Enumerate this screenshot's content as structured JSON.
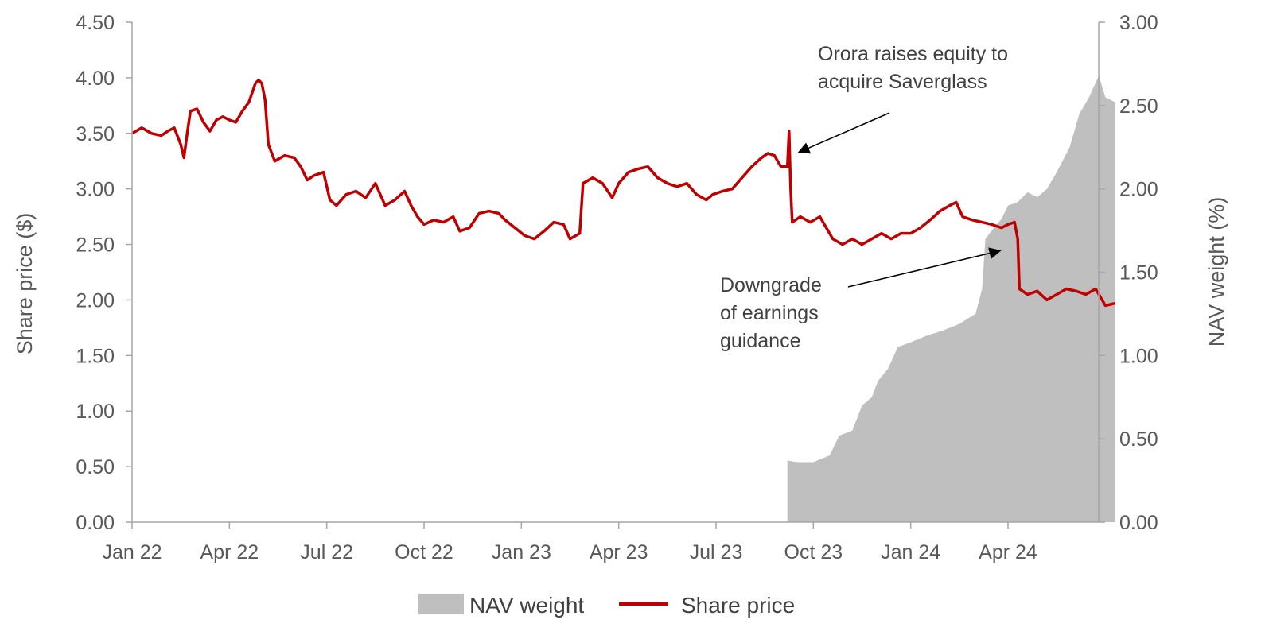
{
  "chart_data": {
    "type": "line+area",
    "title": "",
    "x_ticks": [
      "Jan 22",
      "Apr 22",
      "Jul 22",
      "Oct 22",
      "Jan 23",
      "Apr 23",
      "Jul 23",
      "Oct 23",
      "Jan 24",
      "Apr 24"
    ],
    "x_range_months": [
      0,
      30
    ],
    "left_axis": {
      "label": "Share price ($)",
      "min": 0,
      "max": 4.5,
      "ticks": [
        "0.00",
        "0.50",
        "1.00",
        "1.50",
        "2.00",
        "2.50",
        "3.00",
        "3.50",
        "4.00",
        "4.50"
      ]
    },
    "right_axis": {
      "label": "NAV weight (%)",
      "min": 0,
      "max": 3.0,
      "ticks": [
        "0.00",
        "0.50",
        "1.00",
        "1.50",
        "2.00",
        "2.50",
        "3.00"
      ]
    },
    "series": [
      {
        "name": "NAV weight",
        "kind": "area",
        "axis": "right",
        "color": "#bfbfbf",
        "points": [
          [
            20.2,
            0
          ],
          [
            20.2,
            0.37
          ],
          [
            20.5,
            0.36
          ],
          [
            21.0,
            0.36
          ],
          [
            21.5,
            0.4
          ],
          [
            21.8,
            0.52
          ],
          [
            22.2,
            0.55
          ],
          [
            22.5,
            0.7
          ],
          [
            22.8,
            0.75
          ],
          [
            23.0,
            0.85
          ],
          [
            23.3,
            0.92
          ],
          [
            23.6,
            1.05
          ],
          [
            24.0,
            1.08
          ],
          [
            24.5,
            1.12
          ],
          [
            25.0,
            1.15
          ],
          [
            25.5,
            1.19
          ],
          [
            26.0,
            1.25
          ],
          [
            26.2,
            1.4
          ],
          [
            26.3,
            1.7
          ],
          [
            26.5,
            1.75
          ],
          [
            26.8,
            1.82
          ],
          [
            27.0,
            1.9
          ],
          [
            27.3,
            1.92
          ],
          [
            27.6,
            1.98
          ],
          [
            27.9,
            1.95
          ],
          [
            28.2,
            2.0
          ],
          [
            28.5,
            2.1
          ],
          [
            28.9,
            2.25
          ],
          [
            29.2,
            2.45
          ],
          [
            29.5,
            2.55
          ],
          [
            29.8,
            2.68
          ],
          [
            30.0,
            2.55
          ],
          [
            30.3,
            2.52
          ],
          [
            30.3,
            0
          ]
        ]
      },
      {
        "name": "Share price",
        "kind": "line",
        "axis": "left",
        "color": "#c00000",
        "points": [
          [
            0.0,
            3.5
          ],
          [
            0.3,
            3.55
          ],
          [
            0.6,
            3.5
          ],
          [
            0.9,
            3.48
          ],
          [
            1.1,
            3.52
          ],
          [
            1.3,
            3.55
          ],
          [
            1.5,
            3.4
          ],
          [
            1.6,
            3.28
          ],
          [
            1.7,
            3.5
          ],
          [
            1.8,
            3.7
          ],
          [
            2.0,
            3.72
          ],
          [
            2.2,
            3.6
          ],
          [
            2.4,
            3.52
          ],
          [
            2.6,
            3.62
          ],
          [
            2.8,
            3.65
          ],
          [
            3.0,
            3.62
          ],
          [
            3.2,
            3.6
          ],
          [
            3.4,
            3.7
          ],
          [
            3.6,
            3.78
          ],
          [
            3.8,
            3.95
          ],
          [
            3.9,
            3.98
          ],
          [
            4.0,
            3.95
          ],
          [
            4.1,
            3.8
          ],
          [
            4.2,
            3.4
          ],
          [
            4.4,
            3.25
          ],
          [
            4.7,
            3.3
          ],
          [
            5.0,
            3.28
          ],
          [
            5.2,
            3.2
          ],
          [
            5.4,
            3.08
          ],
          [
            5.6,
            3.12
          ],
          [
            5.9,
            3.15
          ],
          [
            6.1,
            2.9
          ],
          [
            6.3,
            2.85
          ],
          [
            6.6,
            2.95
          ],
          [
            6.9,
            2.98
          ],
          [
            7.2,
            2.92
          ],
          [
            7.5,
            3.05
          ],
          [
            7.8,
            2.85
          ],
          [
            8.1,
            2.9
          ],
          [
            8.4,
            2.98
          ],
          [
            8.6,
            2.85
          ],
          [
            8.8,
            2.75
          ],
          [
            9.0,
            2.68
          ],
          [
            9.3,
            2.72
          ],
          [
            9.6,
            2.7
          ],
          [
            9.9,
            2.75
          ],
          [
            10.1,
            2.62
          ],
          [
            10.4,
            2.65
          ],
          [
            10.7,
            2.78
          ],
          [
            11.0,
            2.8
          ],
          [
            11.3,
            2.78
          ],
          [
            11.5,
            2.72
          ],
          [
            11.8,
            2.65
          ],
          [
            12.1,
            2.58
          ],
          [
            12.4,
            2.55
          ],
          [
            12.7,
            2.62
          ],
          [
            13.0,
            2.7
          ],
          [
            13.3,
            2.68
          ],
          [
            13.5,
            2.55
          ],
          [
            13.8,
            2.6
          ],
          [
            13.9,
            3.05
          ],
          [
            14.2,
            3.1
          ],
          [
            14.5,
            3.05
          ],
          [
            14.8,
            2.92
          ],
          [
            15.0,
            3.05
          ],
          [
            15.3,
            3.15
          ],
          [
            15.6,
            3.18
          ],
          [
            15.9,
            3.2
          ],
          [
            16.2,
            3.1
          ],
          [
            16.5,
            3.05
          ],
          [
            16.8,
            3.02
          ],
          [
            17.1,
            3.05
          ],
          [
            17.4,
            2.95
          ],
          [
            17.7,
            2.9
          ],
          [
            17.9,
            2.95
          ],
          [
            18.2,
            2.98
          ],
          [
            18.5,
            3.0
          ],
          [
            18.8,
            3.1
          ],
          [
            19.1,
            3.2
          ],
          [
            19.4,
            3.28
          ],
          [
            19.6,
            3.32
          ],
          [
            19.8,
            3.3
          ],
          [
            20.0,
            3.2
          ],
          [
            20.2,
            3.2
          ],
          [
            20.25,
            3.52
          ],
          [
            20.3,
            3.0
          ],
          [
            20.35,
            2.7
          ],
          [
            20.6,
            2.75
          ],
          [
            20.9,
            2.7
          ],
          [
            21.2,
            2.75
          ],
          [
            21.4,
            2.65
          ],
          [
            21.6,
            2.55
          ],
          [
            21.9,
            2.5
          ],
          [
            22.2,
            2.55
          ],
          [
            22.5,
            2.5
          ],
          [
            22.8,
            2.55
          ],
          [
            23.1,
            2.6
          ],
          [
            23.4,
            2.55
          ],
          [
            23.7,
            2.6
          ],
          [
            24.0,
            2.6
          ],
          [
            24.3,
            2.65
          ],
          [
            24.6,
            2.72
          ],
          [
            24.9,
            2.8
          ],
          [
            25.2,
            2.85
          ],
          [
            25.4,
            2.88
          ],
          [
            25.6,
            2.75
          ],
          [
            25.9,
            2.72
          ],
          [
            26.2,
            2.7
          ],
          [
            26.5,
            2.68
          ],
          [
            26.8,
            2.65
          ],
          [
            27.0,
            2.68
          ],
          [
            27.2,
            2.7
          ],
          [
            27.3,
            2.55
          ],
          [
            27.35,
            2.1
          ],
          [
            27.6,
            2.05
          ],
          [
            27.9,
            2.08
          ],
          [
            28.2,
            2.0
          ],
          [
            28.5,
            2.05
          ],
          [
            28.8,
            2.1
          ],
          [
            29.1,
            2.08
          ],
          [
            29.4,
            2.05
          ],
          [
            29.7,
            2.1
          ],
          [
            29.9,
            2.0
          ],
          [
            30.0,
            1.95
          ],
          [
            30.3,
            1.97
          ]
        ]
      }
    ],
    "annotations": [
      {
        "lines": [
          "Orora raises equity to",
          "acquire Saverglass"
        ],
        "arrow_target": [
          20.3,
          3.5
        ]
      },
      {
        "lines": [
          "Downgrade",
          "of earnings",
          "guidance"
        ],
        "arrow_target": [
          27.0,
          2.4
        ]
      }
    ],
    "legend": {
      "position": "bottom-center",
      "items": [
        {
          "label": "NAV weight",
          "swatch": "area",
          "color": "#bfbfbf"
        },
        {
          "label": "Share price",
          "swatch": "line",
          "color": "#c00000"
        }
      ]
    }
  }
}
